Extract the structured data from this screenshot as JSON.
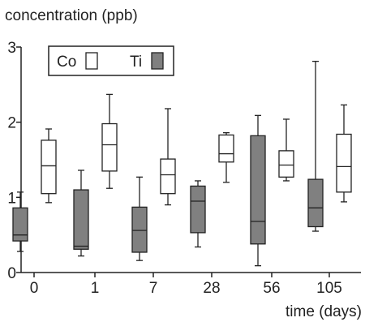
{
  "chart_data": {
    "type": "box",
    "title": "",
    "ylabel": "concentration (ppb)",
    "xlabel": "time (days)",
    "categories": [
      "0",
      "1",
      "7",
      "28",
      "56",
      "105"
    ],
    "ylim": [
      0,
      3
    ],
    "yticks": [
      "0",
      "1",
      "2",
      "3"
    ],
    "grid": false,
    "legend_position": "top-left",
    "series": [
      {
        "name": "Ti",
        "color": "#808080",
        "boxes": [
          {
            "whisker_low": 0.28,
            "q1": 0.42,
            "median": 0.5,
            "q3": 0.86,
            "whisker_high": 1.07
          },
          {
            "whisker_low": 0.22,
            "q1": 0.31,
            "median": 0.35,
            "q3": 1.1,
            "whisker_high": 1.36
          },
          {
            "whisker_low": 0.16,
            "q1": 0.27,
            "median": 0.56,
            "q3": 0.87,
            "whisker_high": 1.27
          },
          {
            "whisker_low": 0.34,
            "q1": 0.53,
            "median": 0.95,
            "q3": 1.15,
            "whisker_high": 1.22
          },
          {
            "whisker_low": 0.09,
            "q1": 0.38,
            "median": 0.68,
            "q3": 1.82,
            "whisker_high": 2.09
          },
          {
            "whisker_low": 0.55,
            "q1": 0.61,
            "median": 0.86,
            "q3": 1.24,
            "whisker_high": 2.81
          }
        ]
      },
      {
        "name": "Co",
        "color": "#ffffff",
        "boxes": [
          {
            "whisker_low": 0.93,
            "q1": 1.05,
            "median": 1.42,
            "q3": 1.76,
            "whisker_high": 1.91
          },
          {
            "whisker_low": 1.12,
            "q1": 1.35,
            "median": 1.7,
            "q3": 1.98,
            "whisker_high": 2.37
          },
          {
            "whisker_low": 0.9,
            "q1": 1.05,
            "median": 1.3,
            "q3": 1.51,
            "whisker_high": 2.18
          },
          {
            "whisker_low": 1.2,
            "q1": 1.47,
            "median": 1.58,
            "q3": 1.83,
            "whisker_high": 1.86
          },
          {
            "whisker_low": 1.22,
            "q1": 1.27,
            "median": 1.43,
            "q3": 1.62,
            "whisker_high": 2.04
          },
          {
            "whisker_low": 0.94,
            "q1": 1.07,
            "median": 1.41,
            "q3": 1.84,
            "whisker_high": 2.23
          }
        ]
      }
    ]
  }
}
